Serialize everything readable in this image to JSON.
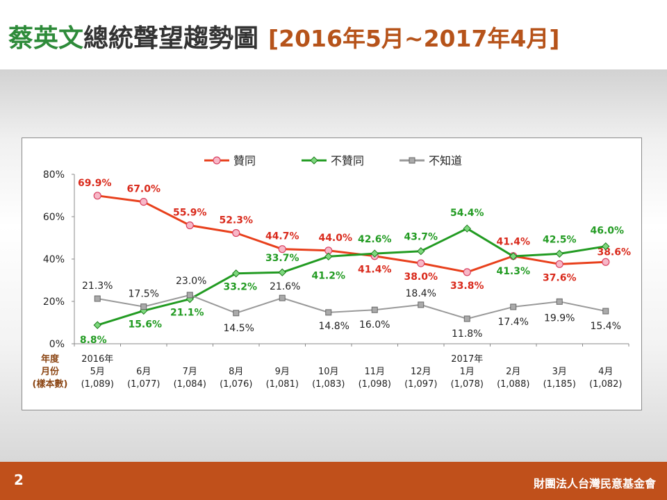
{
  "title": {
    "name_part": "蔡英文",
    "main_part": "總統聲望趨勢圖",
    "period": "[2016年5月~2017年4月]"
  },
  "footer": {
    "page_number": "2",
    "organization": "財團法人台灣民意基金會"
  },
  "colors": {
    "approve": "#e8401c",
    "disapprove": "#229b22",
    "unknown": "#999999",
    "approve_label": "#d92a1c",
    "disapprove_label": "#229b22"
  },
  "chart_data": {
    "type": "line",
    "title": "蔡英文總統聲望趨勢圖 [2016年5月~2017年4月]",
    "ylabel_lines": [
      "年度",
      "月份",
      "(樣本數)"
    ],
    "ylim": [
      0,
      80
    ],
    "yticks": [
      "0%",
      "20%",
      "40%",
      "60%",
      "80%"
    ],
    "categories": [
      [
        "2016年",
        "5月",
        "(1,089)"
      ],
      [
        "6月",
        "(1,077)"
      ],
      [
        "7月",
        "(1,084)"
      ],
      [
        "8月",
        "(1,076)"
      ],
      [
        "9月",
        "(1,081)"
      ],
      [
        "10月",
        "(1,083)"
      ],
      [
        "11月",
        "(1,098)"
      ],
      [
        "12月",
        "(1,097)"
      ],
      [
        "2017年",
        "1月",
        "(1,078)"
      ],
      [
        "2月",
        "(1,088)"
      ],
      [
        "3月",
        "(1,185)"
      ],
      [
        "4月",
        "(1,082)"
      ]
    ],
    "legend_position": "top",
    "series": [
      {
        "name": "贊同",
        "values": [
          69.9,
          67.0,
          55.9,
          52.3,
          44.7,
          44.0,
          41.4,
          38.0,
          33.8,
          41.4,
          37.6,
          38.6
        ],
        "labels": [
          "69.9%",
          "67.0%",
          "55.9%",
          "52.3%",
          "44.7%",
          "44.0%",
          "41.4%",
          "38.0%",
          "33.8%",
          "41.4%",
          "37.6%",
          "38.6%"
        ]
      },
      {
        "name": "不贊同",
        "values": [
          8.8,
          15.6,
          21.1,
          33.2,
          33.7,
          41.2,
          42.6,
          43.7,
          54.4,
          41.3,
          42.5,
          46.0
        ],
        "labels": [
          "8.8%",
          "15.6%",
          "21.1%",
          "33.2%",
          "33.7%",
          "41.2%",
          "42.6%",
          "43.7%",
          "54.4%",
          "41.3%",
          "42.5%",
          "46.0%"
        ]
      },
      {
        "name": "不知道",
        "values": [
          21.3,
          17.5,
          23.0,
          14.5,
          21.6,
          14.8,
          16.0,
          18.4,
          11.8,
          17.4,
          19.9,
          15.4
        ],
        "labels": [
          "21.3%",
          "17.5%",
          "23.0%",
          "14.5%",
          "21.6%",
          "14.8%",
          "16.0%",
          "18.4%",
          "11.8%",
          "17.4%",
          "19.9%",
          "15.4%"
        ]
      }
    ]
  }
}
